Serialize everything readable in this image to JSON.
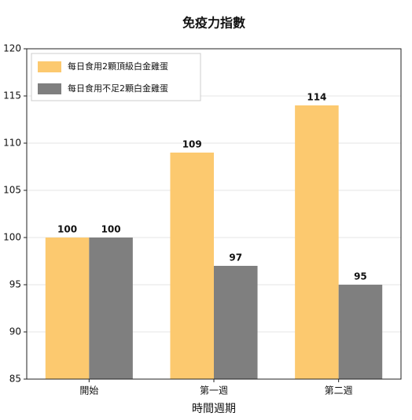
{
  "chart_data": {
    "type": "bar",
    "title": "免疫力指數",
    "xlabel": "時間週期",
    "categories": [
      "開始",
      "第一週",
      "第二週"
    ],
    "series": [
      {
        "name": "每日食用2顆頂級白金雞蛋",
        "color": "#fcc96f",
        "values": [
          100,
          109,
          114
        ]
      },
      {
        "name": "每日食用不足2顆白金雞蛋",
        "color": "#7f7f7f",
        "values": [
          100,
          97,
          95
        ]
      }
    ],
    "ylim": [
      85,
      120
    ],
    "yticks": [
      85,
      90,
      95,
      100,
      105,
      110,
      115,
      120
    ],
    "grid": true,
    "legend": "upper left"
  }
}
